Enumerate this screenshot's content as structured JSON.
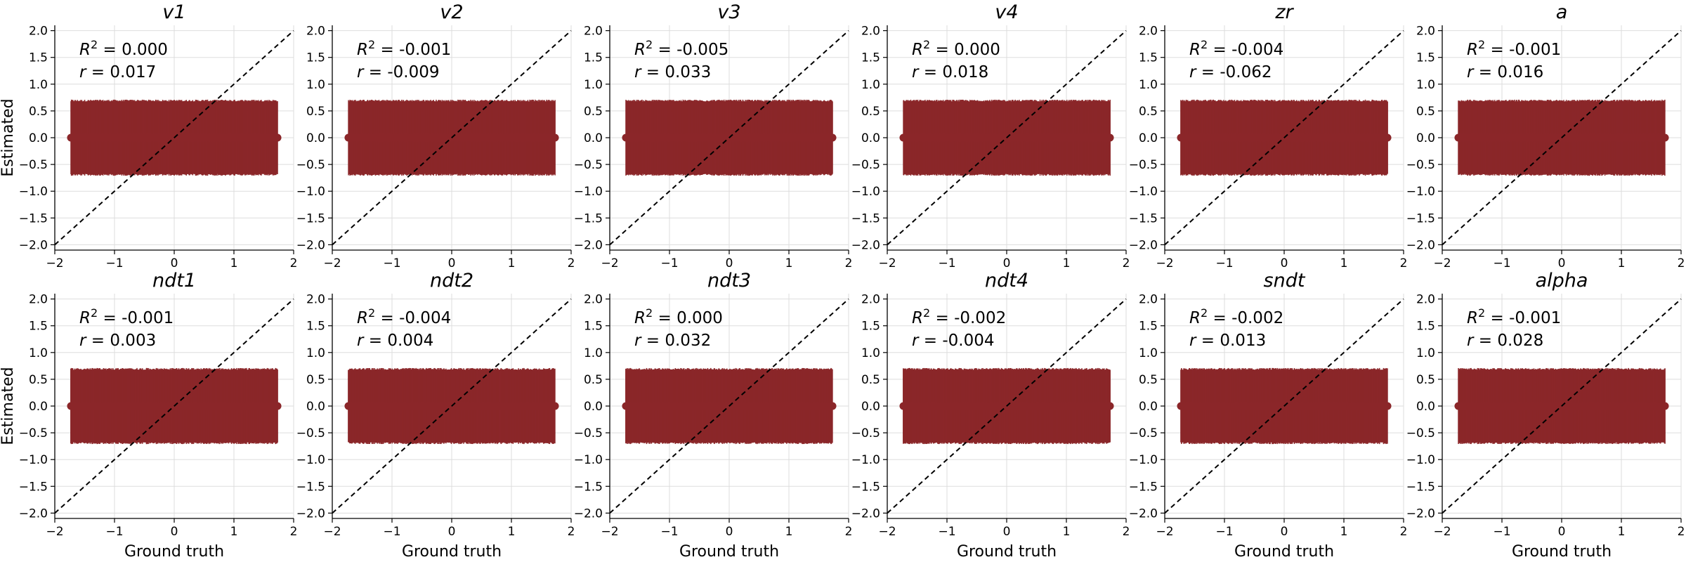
{
  "figure": {
    "xlabel": "Ground truth",
    "ylabel": "Estimated",
    "color": "#8b2629"
  },
  "chart_data": [
    {
      "type": "scatter",
      "title": "v1",
      "r2": "0.000",
      "r": "0.017",
      "xlim": [
        -2.0,
        2.0
      ],
      "ylim": [
        -2.1,
        2.1
      ],
      "xticks": [
        -2,
        -1,
        0,
        1,
        2
      ],
      "yticks": [
        -2.0,
        -1.5,
        -1.0,
        -0.5,
        0.0,
        0.5,
        1.0,
        1.5,
        2.0
      ],
      "x_range": [
        -1.73,
        1.73
      ],
      "y_center": 0.0,
      "error_half_width": 0.69
    },
    {
      "type": "scatter",
      "title": "v2",
      "r2": "-0.001",
      "r": "-0.009",
      "xlim": [
        -2.0,
        2.0
      ],
      "ylim": [
        -2.1,
        2.1
      ],
      "xticks": [
        -2,
        -1,
        0,
        1,
        2
      ],
      "yticks": [
        -2.0,
        -1.5,
        -1.0,
        -0.5,
        0.0,
        0.5,
        1.0,
        1.5,
        2.0
      ],
      "x_range": [
        -1.73,
        1.73
      ],
      "y_center": 0.0,
      "error_half_width": 0.69
    },
    {
      "type": "scatter",
      "title": "v3",
      "r2": "-0.005",
      "r": "0.033",
      "xlim": [
        -2.0,
        2.0
      ],
      "ylim": [
        -2.1,
        2.1
      ],
      "xticks": [
        -2,
        -1,
        0,
        1,
        2
      ],
      "yticks": [
        -2.0,
        -1.5,
        -1.0,
        -0.5,
        0.0,
        0.5,
        1.0,
        1.5,
        2.0
      ],
      "x_range": [
        -1.73,
        1.73
      ],
      "y_center": 0.0,
      "error_half_width": 0.69
    },
    {
      "type": "scatter",
      "title": "v4",
      "r2": "0.000",
      "r": "0.018",
      "xlim": [
        -2.0,
        2.0
      ],
      "ylim": [
        -2.1,
        2.1
      ],
      "xticks": [
        -2,
        -1,
        0,
        1,
        2
      ],
      "yticks": [
        -2.0,
        -1.5,
        -1.0,
        -0.5,
        0.0,
        0.5,
        1.0,
        1.5,
        2.0
      ],
      "x_range": [
        -1.73,
        1.73
      ],
      "y_center": 0.0,
      "error_half_width": 0.69
    },
    {
      "type": "scatter",
      "title": "zr",
      "r2": "-0.004",
      "r": "-0.062",
      "xlim": [
        -2.0,
        2.0
      ],
      "ylim": [
        -2.1,
        2.1
      ],
      "xticks": [
        -2,
        -1,
        0,
        1,
        2
      ],
      "yticks": [
        -2.0,
        -1.5,
        -1.0,
        -0.5,
        0.0,
        0.5,
        1.0,
        1.5,
        2.0
      ],
      "x_range": [
        -1.73,
        1.73
      ],
      "y_center": 0.0,
      "error_half_width": 0.69
    },
    {
      "type": "scatter",
      "title": "a",
      "r2": "-0.001",
      "r": "0.016",
      "xlim": [
        -2.0,
        2.0
      ],
      "ylim": [
        -2.1,
        2.1
      ],
      "xticks": [
        -2,
        -1,
        0,
        1,
        2
      ],
      "yticks": [
        -2.0,
        -1.5,
        -1.0,
        -0.5,
        0.0,
        0.5,
        1.0,
        1.5,
        2.0
      ],
      "x_range": [
        -1.73,
        1.73
      ],
      "y_center": 0.0,
      "error_half_width": 0.69
    },
    {
      "type": "scatter",
      "title": "ndt1",
      "r2": "-0.001",
      "r": "0.003",
      "xlim": [
        -2.0,
        2.0
      ],
      "ylim": [
        -2.1,
        2.1
      ],
      "xticks": [
        -2,
        -1,
        0,
        1,
        2
      ],
      "yticks": [
        -2.0,
        -1.5,
        -1.0,
        -0.5,
        0.0,
        0.5,
        1.0,
        1.5,
        2.0
      ],
      "x_range": [
        -1.73,
        1.73
      ],
      "y_center": 0.0,
      "error_half_width": 0.69
    },
    {
      "type": "scatter",
      "title": "ndt2",
      "r2": "-0.004",
      "r": "0.004",
      "xlim": [
        -2.0,
        2.0
      ],
      "ylim": [
        -2.1,
        2.1
      ],
      "xticks": [
        -2,
        -1,
        0,
        1,
        2
      ],
      "yticks": [
        -2.0,
        -1.5,
        -1.0,
        -0.5,
        0.0,
        0.5,
        1.0,
        1.5,
        2.0
      ],
      "x_range": [
        -1.73,
        1.73
      ],
      "y_center": 0.0,
      "error_half_width": 0.69
    },
    {
      "type": "scatter",
      "title": "ndt3",
      "r2": "0.000",
      "r": "0.032",
      "xlim": [
        -2.0,
        2.0
      ],
      "ylim": [
        -2.1,
        2.1
      ],
      "xticks": [
        -2,
        -1,
        0,
        1,
        2
      ],
      "yticks": [
        -2.0,
        -1.5,
        -1.0,
        -0.5,
        0.0,
        0.5,
        1.0,
        1.5,
        2.0
      ],
      "x_range": [
        -1.73,
        1.73
      ],
      "y_center": 0.0,
      "error_half_width": 0.69
    },
    {
      "type": "scatter",
      "title": "ndt4",
      "r2": "-0.002",
      "r": "-0.004",
      "xlim": [
        -2.0,
        2.0
      ],
      "ylim": [
        -2.1,
        2.1
      ],
      "xticks": [
        -2,
        -1,
        0,
        1,
        2
      ],
      "yticks": [
        -2.0,
        -1.5,
        -1.0,
        -0.5,
        0.0,
        0.5,
        1.0,
        1.5,
        2.0
      ],
      "x_range": [
        -1.73,
        1.73
      ],
      "y_center": 0.0,
      "error_half_width": 0.69
    },
    {
      "type": "scatter",
      "title": "sndt",
      "r2": "-0.002",
      "r": "0.013",
      "xlim": [
        -2.0,
        2.0
      ],
      "ylim": [
        -2.1,
        2.1
      ],
      "xticks": [
        -2,
        -1,
        0,
        1,
        2
      ],
      "yticks": [
        -2.0,
        -1.5,
        -1.0,
        -0.5,
        0.0,
        0.5,
        1.0,
        1.5,
        2.0
      ],
      "x_range": [
        -1.73,
        1.73
      ],
      "y_center": 0.0,
      "error_half_width": 0.69
    },
    {
      "type": "scatter",
      "title": "alpha",
      "r2": "-0.001",
      "r": "0.028",
      "xlim": [
        -2.0,
        2.0
      ],
      "ylim": [
        -2.1,
        2.1
      ],
      "xticks": [
        -2,
        -1,
        0,
        1,
        2
      ],
      "yticks": [
        -2.0,
        -1.5,
        -1.0,
        -0.5,
        0.0,
        0.5,
        1.0,
        1.5,
        2.0
      ],
      "x_range": [
        -1.73,
        1.73
      ],
      "y_center": 0.0,
      "error_half_width": 0.69
    }
  ]
}
